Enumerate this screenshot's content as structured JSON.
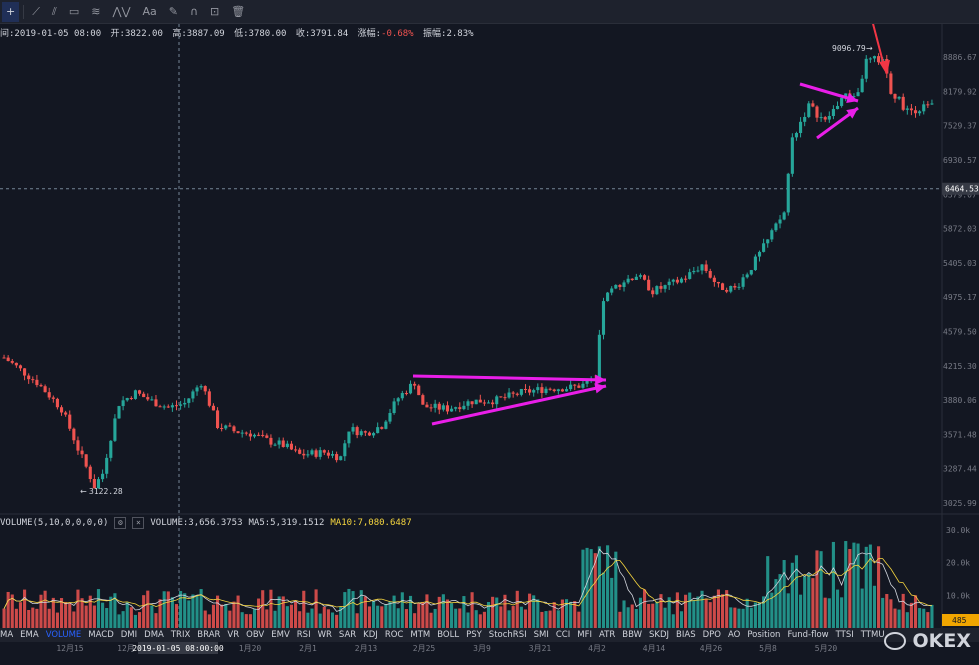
{
  "toolbar": {
    "icons": [
      "crosshair-icon",
      "trend-line-icon",
      "fib-icon",
      "rectangle-icon",
      "brush-pattern-icon",
      "text-icon",
      "pencil-icon",
      "magnet-icon",
      "lock-icon",
      "trash-icon"
    ],
    "text_label": "Aa"
  },
  "ohlc": {
    "time_label": "间:2019-01-05 08:00",
    "open": "开:3822.00",
    "high": "高:3887.09",
    "low": "低:3780.00",
    "close": "收:3791.84",
    "change_label": "涨幅:",
    "change": "-0.68%",
    "amplitude": "振幅:2.83%"
  },
  "volume_info": {
    "name": "VOLUME(5,10,0,0,0,0)",
    "volume": "VOLUME:3,656.3753",
    "ma5": "MA5:5,319.1512",
    "ma10": "MA10:7,080.6487"
  },
  "price_axis": {
    "labels": [
      "8886.67",
      "8179.92",
      "7529.37",
      "6930.57",
      "6379.07",
      "5872.03",
      "5405.03",
      "4975.17",
      "4579.50",
      "4215.30",
      "3880.06",
      "3571.48",
      "3287.44",
      "3025.99"
    ],
    "current_price": "6464.53",
    "current_color": "#9598a1"
  },
  "annotations": {
    "high_label": "9096.79",
    "low_label": "3122.28"
  },
  "volume_axis": {
    "labels": [
      "30.0k",
      "20.0k",
      "10.0k"
    ],
    "current": "485"
  },
  "time_axis": {
    "labels": [
      "12月15",
      "12月",
      "2019-01-05 08:00:00",
      "1月20",
      "2月1",
      "2月13",
      "2月25",
      "3月9",
      "3月21",
      "4月2",
      "4月14",
      "4月26",
      "5月8",
      "5月20"
    ]
  },
  "indicators": [
    "MA",
    "EMA",
    "VOLUME",
    "MACD",
    "DMI",
    "DMA",
    "TRIX",
    "BRAR",
    "VR",
    "OBV",
    "EMV",
    "RSI",
    "WR",
    "SAR",
    "KDJ",
    "ROC",
    "MTM",
    "BOLL",
    "PSY",
    "StochRSI",
    "SMI",
    "CCI",
    "MFI",
    "ATR",
    "BBW",
    "SKDJ",
    "BIAS",
    "DPO",
    "AO",
    "Position",
    "Fund-flow",
    "TTSI",
    "TTMU"
  ],
  "active_indicator": "VOLUME",
  "watermark": "OKEX",
  "colors": {
    "up": "#26a69a",
    "down": "#ef5350",
    "arrow": "#e91ee8",
    "red_arrow": "#f23645",
    "bg": "#131722",
    "ma5": "#d1d4dc",
    "ma10": "#f5d53f"
  }
}
